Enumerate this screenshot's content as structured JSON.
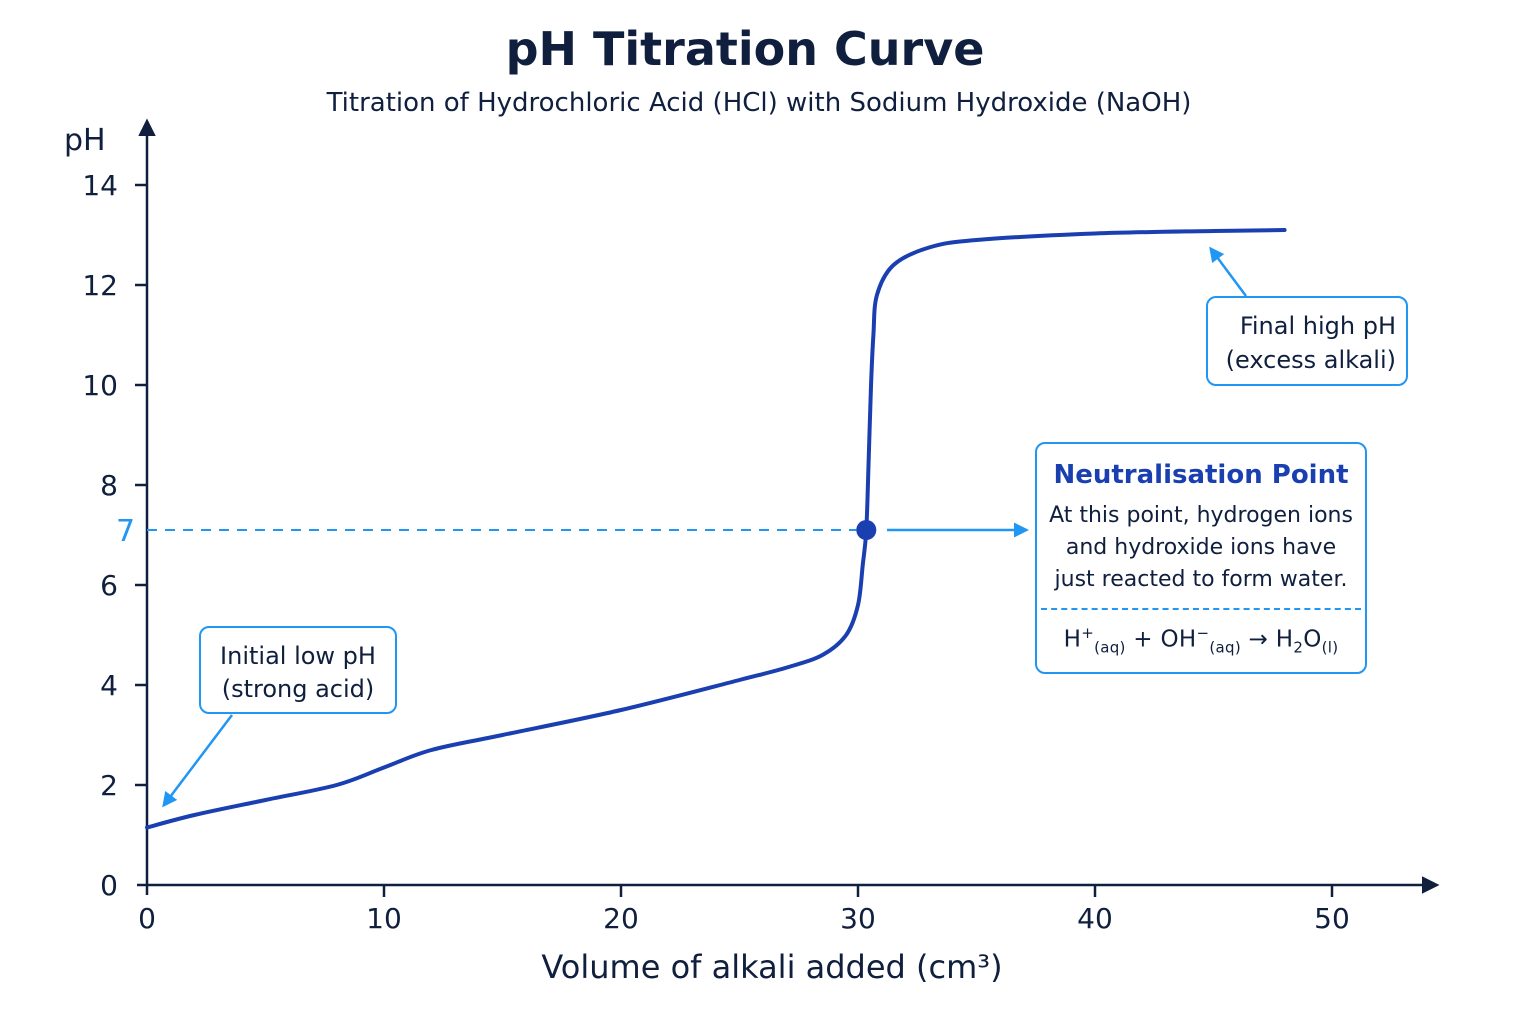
{
  "chart_data": {
    "type": "line",
    "title": "pH Titration Curve",
    "subtitle": "Titration of Hydrochloric Acid (HCl) with Sodium Hydroxide (NaOH)",
    "xlabel": "Volume of alkali added (cm³)",
    "ylabel": "pH",
    "xlim": [
      0,
      50
    ],
    "ylim": [
      0,
      14
    ],
    "x_ticks": [
      0,
      10,
      20,
      30,
      40,
      50
    ],
    "y_ticks": [
      0,
      2,
      4,
      6,
      8,
      10,
      12,
      14
    ],
    "grid": false,
    "series": [
      {
        "color": "#1a3fb0",
        "points": [
          [
            0,
            1.15
          ],
          [
            2,
            1.4
          ],
          [
            5,
            1.7
          ],
          [
            8,
            2.0
          ],
          [
            10,
            2.35
          ],
          [
            12,
            2.7
          ],
          [
            15,
            3.0
          ],
          [
            20,
            3.5
          ],
          [
            25,
            4.1
          ],
          [
            27,
            4.35
          ],
          [
            28.5,
            4.6
          ],
          [
            29.5,
            5.0
          ],
          [
            30.0,
            5.6
          ],
          [
            30.2,
            6.4
          ],
          [
            30.35,
            7.1
          ],
          [
            30.45,
            8.5
          ],
          [
            30.55,
            10.0
          ],
          [
            30.65,
            11.0
          ],
          [
            30.8,
            11.8
          ],
          [
            31.5,
            12.4
          ],
          [
            33,
            12.75
          ],
          [
            35,
            12.9
          ],
          [
            40,
            13.03
          ],
          [
            45,
            13.08
          ],
          [
            48,
            13.1
          ]
        ]
      }
    ],
    "reference_line": {
      "y": 7,
      "label": "7",
      "color": "#2196f3"
    },
    "marker": {
      "x": 30.35,
      "y": 7.1,
      "color": "#1a3fb0"
    }
  },
  "annotations": {
    "initial": {
      "line1": "Initial low pH",
      "line2": "(strong acid)"
    },
    "final": {
      "line1": "Final high pH",
      "line2": "(excess alkali)"
    },
    "neutral": {
      "title": "Neutralisation Point",
      "body1": "At this point, hydrogen ions",
      "body2": "and hydroxide ions have",
      "body3": "just reacted to form water.",
      "eq_h": "H",
      "eq_plus_sup": "+",
      "eq_aq1": "(aq)",
      "eq_mid": " + OH",
      "eq_minus_sup": "−",
      "eq_aq2": "(aq)",
      "eq_arrow": " → H",
      "eq_two": "2",
      "eq_o": "O",
      "eq_l": "(l)"
    }
  },
  "colors": {
    "curve": "#1a3fb0",
    "accent": "#2196f3",
    "axis": "#0f1f3d"
  }
}
